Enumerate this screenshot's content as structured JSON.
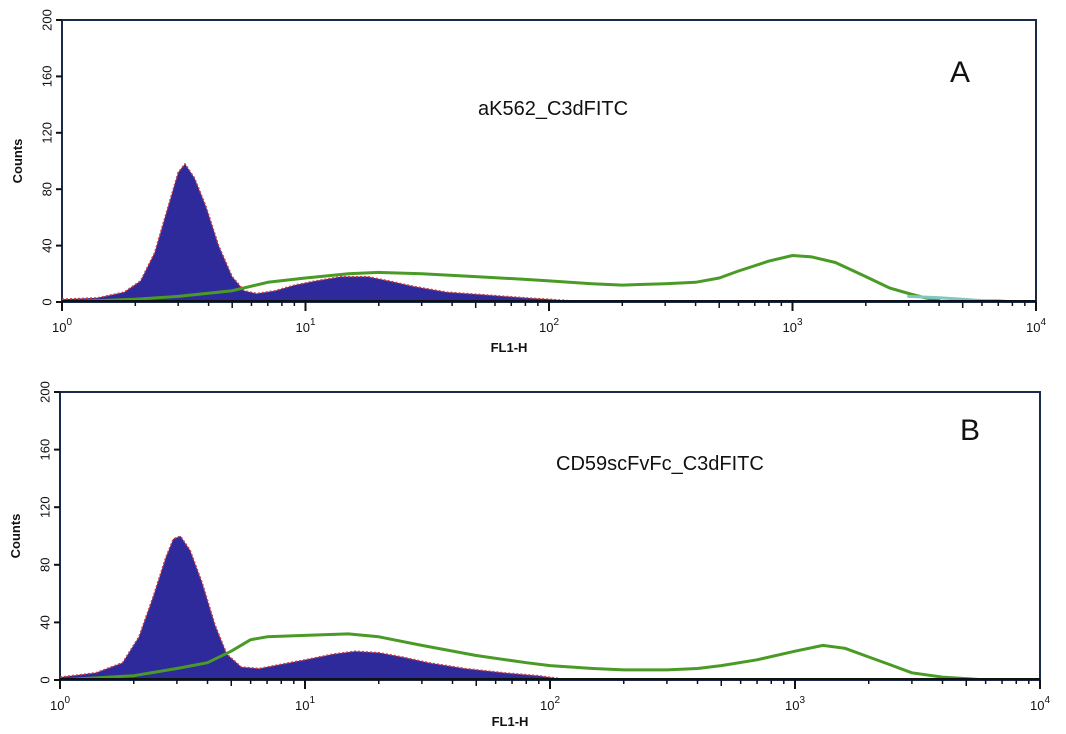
{
  "chart_data": [
    {
      "type": "area",
      "panel_letter": "A",
      "title": "aK562_C3dFITC",
      "xlabel": "FL1-H",
      "ylabel": "Counts",
      "x_scale": "log",
      "xlim": [
        1,
        10000
      ],
      "ylim": [
        0,
        200
      ],
      "x_ticks": [
        {
          "base": "10",
          "exp": "0"
        },
        {
          "base": "10",
          "exp": "1"
        },
        {
          "base": "10",
          "exp": "2"
        },
        {
          "base": "10",
          "exp": "3"
        },
        {
          "base": "10",
          "exp": "4"
        }
      ],
      "y_ticks": [
        "0",
        "40",
        "80",
        "120",
        "160",
        "200"
      ],
      "colors": {
        "control_fill": "#2e2a9c",
        "control_edge": "#d23a3a",
        "sample_line": "#4a9a26",
        "sample_tail": "#7fc7c0"
      },
      "series": [
        {
          "role": "control-filled",
          "x": [
            1.0,
            1.4,
            1.8,
            2.1,
            2.4,
            2.7,
            3.0,
            3.2,
            3.5,
            3.9,
            4.4,
            5.0,
            5.6,
            6.3,
            7.5,
            9.0,
            11,
            14,
            18,
            22,
            28,
            38,
            55,
            80,
            100,
            120,
            140
          ],
          "y": [
            2,
            3,
            7,
            15,
            35,
            65,
            92,
            98,
            88,
            68,
            40,
            18,
            8,
            6,
            8,
            12,
            15,
            18,
            18,
            15,
            11,
            7,
            5,
            3,
            2,
            1,
            0
          ]
        },
        {
          "role": "sample",
          "x": [
            1.0,
            2.0,
            3.0,
            5.0,
            7.0,
            10,
            15,
            20,
            30,
            50,
            80,
            100,
            150,
            200,
            300,
            400,
            500,
            600,
            800,
            1000,
            1200,
            1500,
            2000,
            2500,
            3000,
            3500,
            4000
          ],
          "y": [
            0,
            2,
            4,
            8,
            14,
            17,
            20,
            21,
            20,
            18,
            16,
            15,
            13,
            12,
            13,
            14,
            17,
            22,
            29,
            33,
            32,
            28,
            18,
            10,
            6,
            3,
            1
          ]
        },
        {
          "role": "sample-tail",
          "x": [
            3000,
            4000,
            5000,
            6000,
            7000,
            8000
          ],
          "y": [
            4,
            3,
            2,
            1,
            1,
            0
          ]
        }
      ]
    },
    {
      "type": "area",
      "panel_letter": "B",
      "title": "CD59scFvFc_C3dFITC",
      "xlabel": "FL1-H",
      "ylabel": "Counts",
      "x_scale": "log",
      "xlim": [
        1,
        10000
      ],
      "ylim": [
        0,
        200
      ],
      "x_ticks": [
        {
          "base": "10",
          "exp": "0"
        },
        {
          "base": "10",
          "exp": "1"
        },
        {
          "base": "10",
          "exp": "2"
        },
        {
          "base": "10",
          "exp": "3"
        },
        {
          "base": "10",
          "exp": "4"
        }
      ],
      "y_ticks": [
        "0",
        "40",
        "80",
        "120",
        "160",
        "200"
      ],
      "colors": {
        "control_fill": "#2e2a9c",
        "control_edge": "#d23a3a",
        "sample_line": "#4a9a26"
      },
      "series": [
        {
          "role": "control-filled",
          "x": [
            1.0,
            1.4,
            1.8,
            2.1,
            2.4,
            2.7,
            2.9,
            3.1,
            3.4,
            3.8,
            4.3,
            4.8,
            5.5,
            6.5,
            8.0,
            10,
            13,
            16,
            20,
            25,
            32,
            45,
            65,
            90,
            110,
            140
          ],
          "y": [
            2,
            5,
            12,
            30,
            58,
            85,
            98,
            100,
            90,
            68,
            38,
            18,
            9,
            8,
            11,
            14,
            18,
            20,
            19,
            16,
            12,
            8,
            5,
            3,
            1,
            0
          ]
        },
        {
          "role": "sample",
          "x": [
            1.0,
            2.0,
            3.0,
            4.0,
            5.0,
            6.0,
            7.0,
            10,
            15,
            20,
            30,
            50,
            80,
            100,
            150,
            200,
            300,
            400,
            500,
            700,
            1000,
            1300,
            1600,
            2000,
            2500,
            3000,
            4000,
            5000,
            6000
          ],
          "y": [
            0,
            3,
            8,
            12,
            20,
            28,
            30,
            31,
            32,
            30,
            24,
            17,
            12,
            10,
            8,
            7,
            7,
            8,
            10,
            14,
            20,
            24,
            22,
            16,
            10,
            5,
            2,
            1,
            0
          ]
        }
      ]
    }
  ]
}
